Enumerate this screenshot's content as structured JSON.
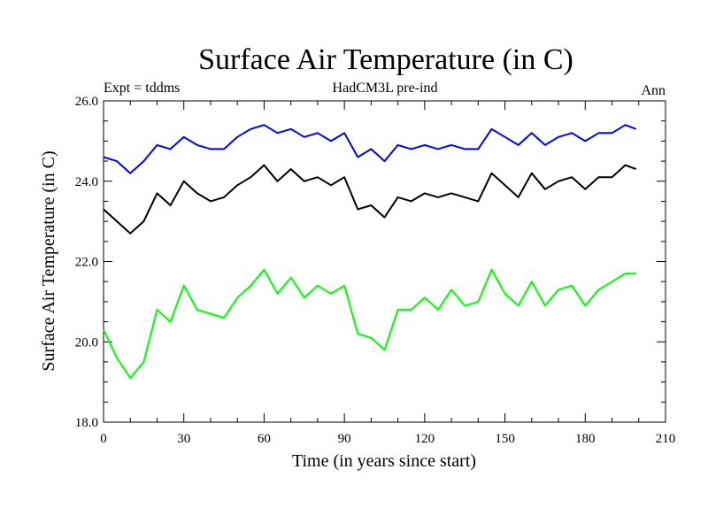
{
  "chart_data": {
    "type": "line",
    "title": "Surface Air Temperature (in C)",
    "subtitle_left": "Expt = tddms",
    "subtitle_center": "HadCM3L pre-ind",
    "subtitle_right": "Ann",
    "xlabel": "Time (in years since start)",
    "ylabel": "Surface Air Temperature (in C)",
    "xlim": [
      0,
      210
    ],
    "ylim": [
      18.0,
      26.0
    ],
    "xticks": [
      0,
      30,
      60,
      90,
      120,
      150,
      180,
      210
    ],
    "xtick_labels": [
      "0",
      "30",
      "60",
      "90",
      "120",
      "150",
      "180",
      "210"
    ],
    "yticks": [
      18.0,
      20.0,
      22.0,
      24.0,
      26.0
    ],
    "ytick_labels": [
      "18.0",
      "20.0",
      "22.0",
      "24.0",
      "26.0"
    ],
    "grid": false,
    "legend": "none",
    "colors": {
      "blue": "#0000ff",
      "black": "#000000",
      "green": "#00ff00"
    },
    "x": [
      0,
      5,
      10,
      15,
      20,
      25,
      30,
      35,
      40,
      45,
      50,
      55,
      60,
      65,
      70,
      75,
      80,
      85,
      90,
      95,
      100,
      105,
      110,
      115,
      120,
      125,
      130,
      135,
      140,
      145,
      150,
      155,
      160,
      165,
      170,
      175,
      180,
      185,
      190,
      195,
      199
    ],
    "series": [
      {
        "color": "#0000ff",
        "values": [
          24.6,
          24.5,
          24.2,
          24.5,
          24.9,
          24.8,
          25.1,
          24.9,
          24.8,
          24.8,
          25.1,
          25.3,
          25.4,
          25.2,
          25.3,
          25.1,
          25.2,
          25.0,
          25.2,
          24.6,
          24.8,
          24.5,
          24.9,
          24.8,
          24.9,
          24.8,
          24.9,
          24.8,
          24.8,
          25.3,
          25.1,
          24.9,
          25.2,
          24.9,
          25.1,
          25.2,
          25.0,
          25.2,
          25.2,
          25.4,
          25.3
        ]
      },
      {
        "color": "#000000",
        "values": [
          23.3,
          23.0,
          22.7,
          23.0,
          23.7,
          23.4,
          24.0,
          23.7,
          23.5,
          23.6,
          23.9,
          24.1,
          24.4,
          24.0,
          24.3,
          24.0,
          24.1,
          23.9,
          24.1,
          23.3,
          23.4,
          23.1,
          23.6,
          23.5,
          23.7,
          23.6,
          23.7,
          23.6,
          23.5,
          24.2,
          23.9,
          23.6,
          24.2,
          23.8,
          24.0,
          24.1,
          23.8,
          24.1,
          24.1,
          24.4,
          24.3
        ]
      },
      {
        "color": "#00ff00",
        "values": [
          20.3,
          19.6,
          19.1,
          19.5,
          20.8,
          20.5,
          21.4,
          20.8,
          20.7,
          20.6,
          21.1,
          21.4,
          21.8,
          21.2,
          21.6,
          21.1,
          21.4,
          21.2,
          21.4,
          20.2,
          20.1,
          19.8,
          20.8,
          20.8,
          21.1,
          20.8,
          21.3,
          20.9,
          21.0,
          21.8,
          21.2,
          20.9,
          21.5,
          20.9,
          21.3,
          21.4,
          20.9,
          21.3,
          21.5,
          21.7,
          21.7
        ]
      }
    ]
  }
}
